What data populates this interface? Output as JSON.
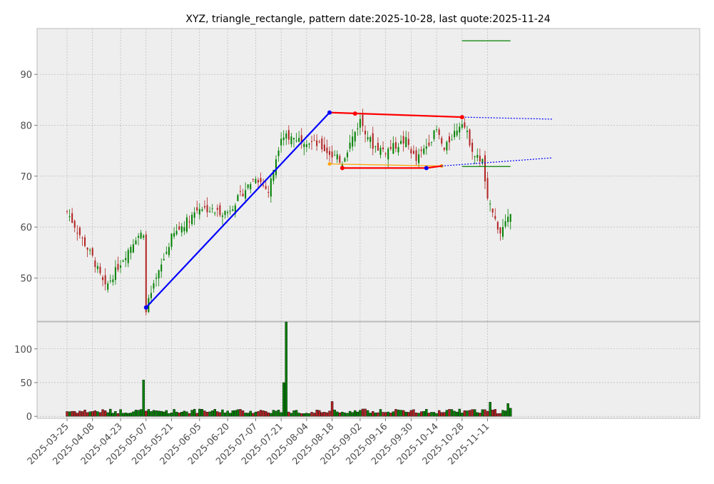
{
  "chart_data": {
    "type": "candlestick",
    "title": "XYZ, triangle_rectangle, pattern date:2025-10-28, last quote:2025-11-24",
    "price_axis": {
      "ylim": [
        41.5,
        99
      ],
      "ticks": [
        50,
        60,
        70,
        80,
        90
      ]
    },
    "volume_axis": {
      "ylim": [
        -3,
        140
      ],
      "ticks": [
        0,
        50,
        100
      ]
    },
    "x_axis": {
      "start_date": "2025-03-25",
      "end_date": "2025-11-24",
      "tick_labels": [
        "2025-03-25",
        "2025-04-08",
        "2025-04-23",
        "2025-05-07",
        "2025-05-21",
        "2025-06-05",
        "2025-06-20",
        "2025-07-07",
        "2025-07-21",
        "2025-08-04",
        "2025-08-18",
        "2025-09-02",
        "2025-09-16",
        "2025-09-30",
        "2025-10-14",
        "2025-10-28",
        "2025-11-11"
      ]
    },
    "grid": true,
    "colors": {
      "up": "#008000",
      "down": "#b22222",
      "panel_bg": "#eeeeee",
      "grid": "#b0b0b0"
    },
    "candle_close_path": [
      [
        "2025-03-25",
        63
      ],
      [
        "2025-04-08",
        54
      ],
      [
        "2025-04-15",
        48
      ],
      [
        "2025-04-23",
        53
      ],
      [
        "2025-05-01",
        58
      ],
      [
        "2025-05-06",
        59
      ],
      [
        "2025-05-07",
        44
      ],
      [
        "2025-05-14",
        51
      ],
      [
        "2025-05-21",
        58
      ],
      [
        "2025-06-05",
        64
      ],
      [
        "2025-06-15",
        63
      ],
      [
        "2025-06-20",
        63
      ],
      [
        "2025-07-07",
        70
      ],
      [
        "2025-07-14",
        67
      ],
      [
        "2025-07-21",
        78
      ],
      [
        "2025-08-04",
        77
      ],
      [
        "2025-08-11",
        76
      ],
      [
        "2025-08-18",
        74
      ],
      [
        "2025-08-22",
        73
      ],
      [
        "2025-09-02",
        81
      ],
      [
        "2025-09-09",
        76
      ],
      [
        "2025-09-16",
        75
      ],
      [
        "2025-09-26",
        77
      ],
      [
        "2025-10-02",
        73
      ],
      [
        "2025-10-14",
        79
      ],
      [
        "2025-10-17",
        75
      ],
      [
        "2025-10-21",
        77
      ],
      [
        "2025-10-28",
        81
      ],
      [
        "2025-11-04",
        74
      ],
      [
        "2025-11-07",
        73
      ],
      [
        "2025-11-11",
        65
      ],
      [
        "2025-11-18",
        59
      ],
      [
        "2025-11-24",
        62
      ]
    ],
    "volume_overrides": [
      [
        "2025-05-06",
        54
      ],
      [
        "2025-07-22",
        50
      ],
      [
        "2025-07-23",
        140
      ],
      [
        "2025-08-18",
        22
      ],
      [
        "2025-11-12",
        21
      ],
      [
        "2025-11-21",
        19
      ],
      [
        "2025-11-24",
        12
      ]
    ],
    "pattern": {
      "trend_line": {
        "points": [
          [
            "2025-05-07",
            44.2
          ],
          [
            "2025-08-15",
            82.5
          ]
        ],
        "color": "#0000ff"
      },
      "upper_line": {
        "points": [
          [
            "2025-08-15",
            82.5
          ],
          [
            "2025-10-28",
            81.6
          ]
        ],
        "color": "#ff0000"
      },
      "upper_mid_point": [
        "2025-08-29",
        82.3
      ],
      "lower_line": {
        "points": [
          [
            "2025-08-23",
            71.6
          ],
          [
            "2025-10-08",
            71.6
          ],
          [
            "2025-10-16",
            72
          ]
        ],
        "color": "#ff0000"
      },
      "lower_mid_point": [
        "2025-10-08",
        71.6
      ],
      "support_line": {
        "points": [
          [
            "2025-08-16",
            72.4
          ],
          [
            "2025-10-16",
            72
          ]
        ],
        "color": "#ffa500"
      },
      "upper_projection": {
        "points": [
          [
            "2025-10-28",
            81.6
          ],
          [
            "2025-12-17",
            81.2
          ]
        ],
        "color": "#0000ff"
      },
      "lower_projection": {
        "points": [
          [
            "2025-10-16",
            72
          ],
          [
            "2025-12-17",
            73.6
          ]
        ],
        "color": "#0000ff"
      },
      "target_lines": [
        {
          "start": "2025-10-28",
          "end": "2025-11-24",
          "value": 96.6,
          "color": "#008000"
        },
        {
          "start": "2025-10-28",
          "end": "2025-11-24",
          "value": 71.9,
          "color": "#008000"
        }
      ]
    }
  }
}
